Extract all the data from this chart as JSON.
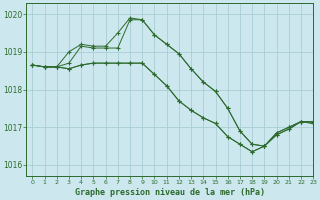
{
  "title": "Graphe pression niveau de la mer (hPa)",
  "bg_color": "#cce8ee",
  "grid_color": "#aacdd6",
  "line_color": "#2d6a2d",
  "xlim": [
    -0.5,
    23
  ],
  "ylim": [
    1015.7,
    1020.3
  ],
  "yticks": [
    1016,
    1017,
    1018,
    1019,
    1020
  ],
  "xticks": [
    0,
    1,
    2,
    3,
    4,
    5,
    6,
    7,
    8,
    9,
    10,
    11,
    12,
    13,
    14,
    15,
    16,
    17,
    18,
    19,
    20,
    21,
    22,
    23
  ],
  "series": [
    [
      1018.65,
      1018.6,
      1018.6,
      1019.0,
      1019.2,
      1019.15,
      1019.15,
      1019.5,
      1019.9,
      1019.85,
      1019.45,
      1019.2,
      1018.95,
      1018.55,
      1018.2,
      1017.95,
      1017.5,
      1016.9,
      1016.55,
      1016.5,
      1016.85,
      1017.0,
      1017.15,
      1017.15
    ],
    [
      1018.65,
      1018.6,
      1018.6,
      1018.7,
      1019.15,
      1019.1,
      1019.1,
      1019.1,
      1019.85,
      1019.85,
      1019.45,
      1019.2,
      1018.95,
      1018.55,
      1018.2,
      1017.95,
      1017.5,
      1016.9,
      1016.55,
      1016.5,
      1016.85,
      1017.0,
      1017.15,
      1017.15
    ],
    [
      1018.65,
      1018.6,
      1018.6,
      1018.55,
      1018.65,
      1018.7,
      1018.7,
      1018.7,
      1018.7,
      1018.7,
      1018.4,
      1018.1,
      1017.7,
      1017.45,
      1017.25,
      1017.1,
      1016.75,
      1016.55,
      1016.35,
      1016.5,
      1016.8,
      1016.95,
      1017.15,
      1017.1
    ],
    [
      1018.65,
      1018.6,
      1018.6,
      1018.55,
      1018.65,
      1018.7,
      1018.7,
      1018.7,
      1018.7,
      1018.7,
      1018.4,
      1018.1,
      1017.7,
      1017.45,
      1017.25,
      1017.1,
      1016.75,
      1016.55,
      1016.35,
      1016.5,
      1016.8,
      1016.95,
      1017.15,
      1017.1
    ]
  ]
}
